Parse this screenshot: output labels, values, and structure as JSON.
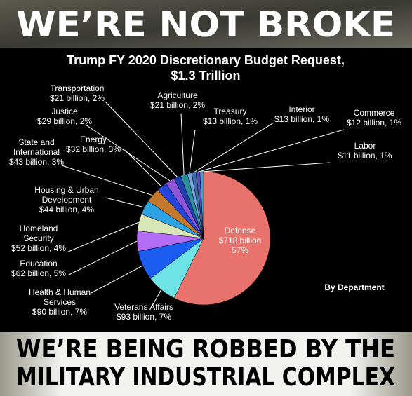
{
  "banner_top": "WE’RE NOT BROKE",
  "banner_bottom": "WE’RE BEING ROBBED BY THE\nMILITARY INDUSTRIAL COMPLEX",
  "chart_data": {
    "type": "pie",
    "title": "Trump FY 2020 Discretionary  Budget Request,\n$1.3 Trillion",
    "annotation": "By Department",
    "categories": [
      "Defense",
      "Veterans Affairs",
      "Health & Human\nServices",
      "Education",
      "Homeland\nSecurity",
      "Housing & Urban\nDevelopment",
      "State and\nInternational",
      "Energy",
      "Justice",
      "Transportation",
      "Agriculture",
      "Treasury",
      "Interior",
      "Commerce",
      "Labor"
    ],
    "values": [
      718,
      93,
      90,
      62,
      52,
      44,
      43,
      32,
      29,
      21,
      21,
      13,
      13,
      12,
      11
    ],
    "value_labels": [
      "$718 billion\n57%",
      "$93 billion, 7%",
      "$90 billion, 7%",
      "$62 billion, 5%",
      "$52 billion, 4%",
      "$44 billion, 4%",
      "$43 billion, 3%",
      "$32 billion, 3%",
      "$29 billion, 2%",
      "$21 billion, 2%",
      "$21 billion, 2%",
      "$13 billion, 1%",
      "$13 billion, 1%",
      "$12 billion, 1%",
      "$11 billion, 1%"
    ],
    "colors": [
      "#e8736c",
      "#6ee3e6",
      "#1b5cf0",
      "#b56cf5",
      "#d8e6b8",
      "#2ea3e3",
      "#c4782c",
      "#2545d8",
      "#8e55d8",
      "#1f3fb0",
      "#2b8f9c",
      "#7a9fe0",
      "#3c6fa8",
      "#5a4db5",
      "#4aa0c8"
    ]
  }
}
